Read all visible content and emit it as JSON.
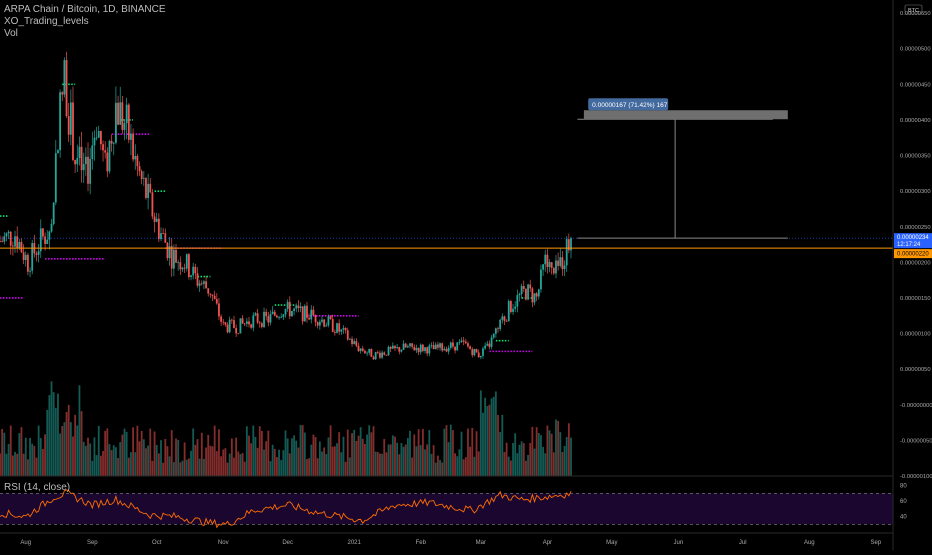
{
  "header": {
    "symbol_line": "ARPA Chain / Bitcoin, 1D, BINANCE",
    "indicator_1": "XO_Trading_levels",
    "indicator_2": "Vol"
  },
  "currency_badge": "BTC",
  "rsi_label": "RSI (14, close)",
  "measure_label": "0.00000167 (71.42%) 167",
  "price_tag": {
    "value": "0.00000234",
    "countdown": "12:17:24"
  },
  "orange_tag": "0.00000220",
  "colors": {
    "up": "#26a69a",
    "down": "#ef5350",
    "orange_line": "#ff9800",
    "level_magenta": "#d500f9",
    "level_green": "#00e676",
    "rsi_line": "#ff6d00",
    "rsi_band": "#1b0630",
    "price_tag_bg": "#2962ff",
    "measure_bg": "#6f6f6f",
    "measure_label_bg": "#436a9e"
  },
  "chart_data": [
    {
      "type": "candlestick",
      "title": "ARPA Chain / Bitcoin, 1D, BINANCE",
      "x_ticks": [
        "Aug",
        "Sep",
        "Oct",
        "Nov",
        "Dec",
        "2021",
        "Feb",
        "Mar",
        "Apr",
        "May",
        "Jun",
        "Jul",
        "Aug",
        "Sep"
      ],
      "y_ticks": [
        "0.00000550",
        "0.00000500",
        "0.00000450",
        "0.00000400",
        "0.00000350",
        "0.00000300",
        "0.00000250",
        "0.00000200",
        "0.00000150",
        "0.00000100",
        "0.00000050",
        "-0.00000000",
        "-0.00000050",
        "-0.00000100"
      ],
      "ylim": [
        -1e-06,
        5.6e-06
      ],
      "price_path": [
        [
          "2020-07-20",
          2.3e-06
        ],
        [
          "2020-07-27",
          2.4e-06
        ],
        [
          "2020-08-02",
          2e-06
        ],
        [
          "2020-08-08",
          2.3e-06
        ],
        [
          "2020-08-13",
          2.5e-06
        ],
        [
          "2020-08-16",
          3.9e-06
        ],
        [
          "2020-08-19",
          4.6e-06
        ],
        [
          "2020-08-24",
          3.5e-06
        ],
        [
          "2020-08-29",
          3.2e-06
        ],
        [
          "2020-09-03",
          4e-06
        ],
        [
          "2020-09-07",
          3.3e-06
        ],
        [
          "2020-09-12",
          4.2e-06
        ],
        [
          "2020-09-17",
          3.9e-06
        ],
        [
          "2020-09-22",
          3.3e-06
        ],
        [
          "2020-09-28",
          2.8e-06
        ],
        [
          "2020-10-03",
          2.4e-06
        ],
        [
          "2020-10-08",
          2.1e-06
        ],
        [
          "2020-10-14",
          2e-06
        ],
        [
          "2020-10-20",
          1.75e-06
        ],
        [
          "2020-10-26",
          1.6e-06
        ],
        [
          "2020-11-01",
          1.1e-06
        ],
        [
          "2020-11-08",
          1.1e-06
        ],
        [
          "2020-11-15",
          1.2e-06
        ],
        [
          "2020-11-22",
          1.2e-06
        ],
        [
          "2020-11-29",
          1.35e-06
        ],
        [
          "2020-12-06",
          1.3e-06
        ],
        [
          "2020-12-13",
          1.25e-06
        ],
        [
          "2020-12-20",
          1.15e-06
        ],
        [
          "2020-12-27",
          1e-06
        ],
        [
          "2021-01-03",
          8e-07
        ],
        [
          "2021-01-10",
          7e-07
        ],
        [
          "2021-01-17",
          7.5e-07
        ],
        [
          "2021-01-24",
          8e-07
        ],
        [
          "2021-01-31",
          8e-07
        ],
        [
          "2021-02-07",
          7.8e-07
        ],
        [
          "2021-02-14",
          8.2e-07
        ],
        [
          "2021-02-21",
          8.5e-07
        ],
        [
          "2021-02-28",
          7e-07
        ],
        [
          "2021-03-04",
          8e-07
        ],
        [
          "2021-03-08",
          1e-06
        ],
        [
          "2021-03-15",
          1.4e-06
        ],
        [
          "2021-03-22",
          1.6e-06
        ],
        [
          "2021-03-27",
          1.5e-06
        ],
        [
          "2021-03-31",
          2e-06
        ],
        [
          "2021-04-04",
          1.8e-06
        ],
        [
          "2021-04-08",
          2.05e-06
        ],
        [
          "2021-04-12",
          2.34e-06
        ]
      ],
      "current_price": 2.34e-06,
      "horizontal_line": 2.2e-06,
      "measure": {
        "from": 2.34e-06,
        "to": 4.01e-06,
        "change": 1.67e-06,
        "percent": 71.42
      },
      "levels": [
        {
          "color": "magenta",
          "price": 1.5e-06,
          "from": "2020-07-20",
          "to": "2020-07-31"
        },
        {
          "color": "magenta",
          "price": 2.05e-06,
          "from": "2020-08-10",
          "to": "2020-09-07"
        },
        {
          "color": "magenta",
          "price": 3.8e-06,
          "from": "2020-09-10",
          "to": "2020-09-28"
        },
        {
          "color": "magenta",
          "price": 2.2e-06,
          "from": "2020-10-05",
          "to": "2020-10-31"
        },
        {
          "color": "magenta",
          "price": 1.25e-06,
          "from": "2020-12-10",
          "to": "2021-01-03"
        },
        {
          "color": "magenta",
          "price": 7.5e-07,
          "from": "2021-03-05",
          "to": "2021-03-25"
        },
        {
          "color": "green",
          "price": 2.65e-06,
          "from": "2020-07-20",
          "to": "2020-07-24"
        },
        {
          "color": "green",
          "price": 4.5e-06,
          "from": "2020-08-18",
          "to": "2020-08-24"
        },
        {
          "color": "green",
          "price": 4e-06,
          "from": "2020-09-14",
          "to": "2020-09-20"
        },
        {
          "color": "green",
          "price": 3e-06,
          "from": "2020-09-30",
          "to": "2020-10-05"
        },
        {
          "color": "green",
          "price": 1.8e-06,
          "from": "2020-10-20",
          "to": "2020-10-26"
        },
        {
          "color": "green",
          "price": 1.4e-06,
          "from": "2020-11-25",
          "to": "2020-12-05"
        },
        {
          "color": "green",
          "price": 9e-07,
          "from": "2021-03-08",
          "to": "2021-03-14"
        },
        {
          "color": "green",
          "price": 1.5e-06,
          "from": "2021-03-20",
          "to": "2021-03-26"
        }
      ]
    },
    {
      "type": "bar",
      "title": "Vol",
      "note": "volume histogram",
      "value_range": [
        0,
        1
      ],
      "pattern": "spikes mid-August 2020, late October 2020 and early March 2021"
    },
    {
      "type": "line",
      "title": "RSI (14, close)",
      "y_ticks": [
        80,
        60,
        40
      ],
      "upper_band": 70,
      "lower_band": 30,
      "ylim": [
        20,
        90
      ],
      "points": [
        [
          "2020-07-20",
          45
        ],
        [
          "2020-08-01",
          40
        ],
        [
          "2020-08-14",
          65
        ],
        [
          "2020-08-20",
          70
        ],
        [
          "2020-09-01",
          55
        ],
        [
          "2020-09-12",
          62
        ],
        [
          "2020-09-28",
          42
        ],
        [
          "2020-10-10",
          40
        ],
        [
          "2020-10-25",
          32
        ],
        [
          "2020-11-03",
          30
        ],
        [
          "2020-11-15",
          48
        ],
        [
          "2020-12-01",
          55
        ],
        [
          "2020-12-15",
          45
        ],
        [
          "2021-01-05",
          35
        ],
        [
          "2021-01-20",
          55
        ],
        [
          "2021-02-05",
          58
        ],
        [
          "2021-02-25",
          48
        ],
        [
          "2021-03-10",
          68
        ],
        [
          "2021-03-20",
          62
        ],
        [
          "2021-04-01",
          66
        ],
        [
          "2021-04-12",
          70
        ]
      ]
    }
  ]
}
